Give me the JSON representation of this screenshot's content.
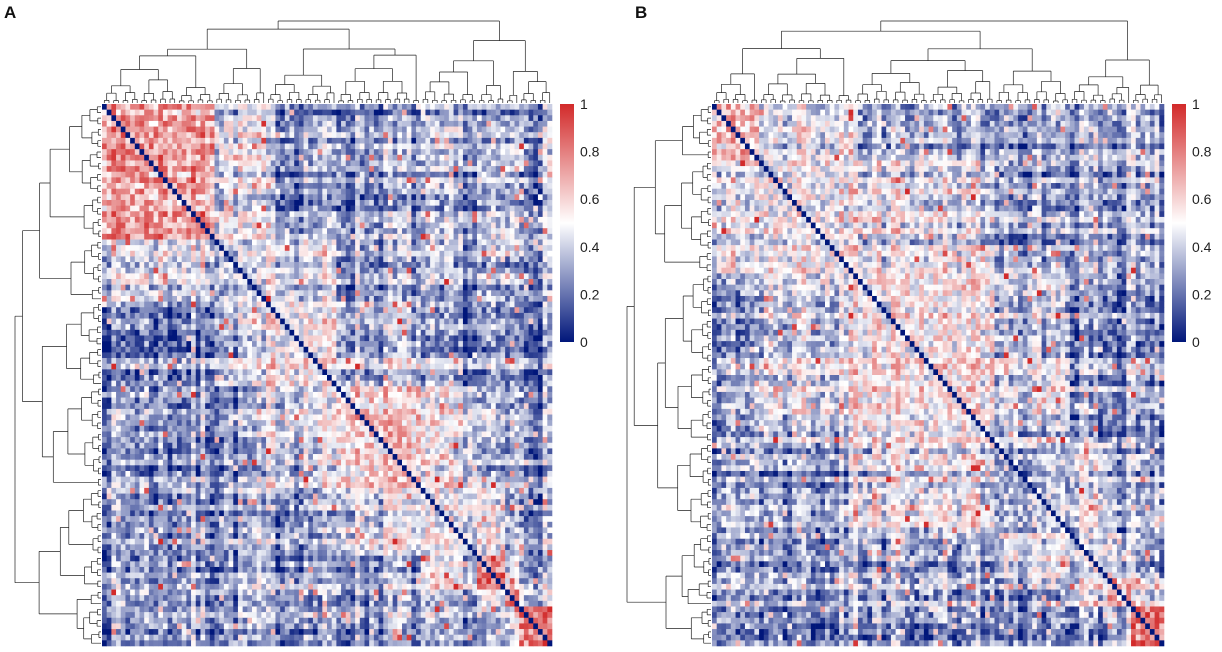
{
  "chart_data": [
    {
      "type": "heatmap",
      "panel_label": "A",
      "n": 96,
      "vmin": 0,
      "vmax": 1,
      "diagonal_value": 0,
      "clustered_dendrograms": true,
      "colorbar": {
        "ticks": [
          "1",
          "0.8",
          "0.6",
          "0.4",
          "0.2",
          "0"
        ],
        "placement": "right"
      },
      "colorscale": [
        "#00167a",
        "#ffffff",
        "#d22a2a"
      ],
      "blocks": [
        {
          "rows": [
            1,
            24
          ],
          "mean_value": 0.72
        },
        {
          "rows": [
            25,
            35
          ],
          "mean_value": 0.38
        },
        {
          "rows": [
            36,
            50
          ],
          "mean_value": 0.55
        },
        {
          "rows": [
            51,
            68
          ],
          "mean_value": 0.6
        },
        {
          "rows": [
            69,
            80
          ],
          "mean_value": 0.45
        },
        {
          "rows": [
            81,
            86
          ],
          "mean_value": 0.8
        },
        {
          "rows": [
            87,
            89
          ],
          "mean_value": 0.88
        },
        {
          "rows": [
            90,
            96
          ],
          "mean_value": 0.8
        }
      ],
      "background_value": 0.1,
      "seed": 7
    },
    {
      "type": "heatmap",
      "panel_label": "B",
      "n": 96,
      "vmin": 0,
      "vmax": 1,
      "diagonal_value": 0,
      "clustered_dendrograms": true,
      "colorbar": {
        "ticks": [
          "1",
          "0.8",
          "0.6",
          "0.4",
          "0.2",
          "0"
        ],
        "placement": "right"
      },
      "colorscale": [
        "#00167a",
        "#ffffff",
        "#d22a2a"
      ],
      "blocks": [
        {
          "rows": [
            1,
            10
          ],
          "mean_value": 0.62
        },
        {
          "rows": [
            11,
            30
          ],
          "mean_value": 0.5
        },
        {
          "rows": [
            31,
            60
          ],
          "mean_value": 0.55
        },
        {
          "rows": [
            61,
            76
          ],
          "mean_value": 0.35
        },
        {
          "rows": [
            77,
            84
          ],
          "mean_value": 0.45
        },
        {
          "rows": [
            85,
            89
          ],
          "mean_value": 0.7
        },
        {
          "rows": [
            90,
            96
          ],
          "mean_value": 0.82
        }
      ],
      "background_value": 0.12,
      "seed": 19
    }
  ]
}
